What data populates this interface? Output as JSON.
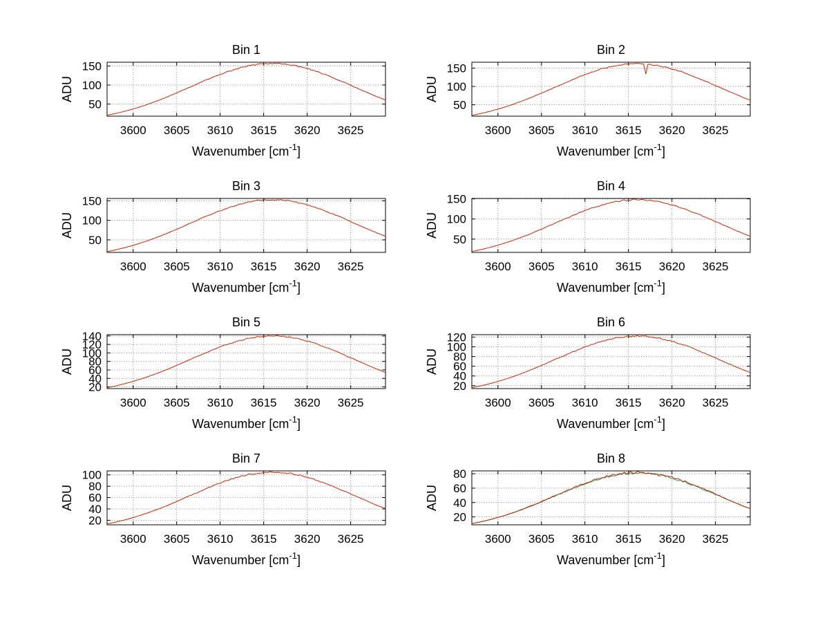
{
  "figure": {
    "background": "#ffffff"
  },
  "chart_data": {
    "type": "line",
    "grid": true,
    "legend": "none",
    "xlim": [
      3597,
      3629
    ],
    "x_start": 3597,
    "x_step": 1,
    "x_ticks": [
      3600,
      3605,
      3610,
      3615,
      3620,
      3625
    ],
    "xlabel": {
      "pre": "Wavenumber [cm",
      "sup": "-1",
      "post": "]"
    },
    "ylabel": "ADU",
    "grid_color": "#808080",
    "axis_color": "#000000",
    "plots": [
      {
        "title": "Bin 1",
        "ylim": [
          18,
          160
        ],
        "y_ticks": [
          50,
          100,
          150
        ],
        "series": [
          {
            "color": "#cc2200",
            "noise": 1.8,
            "values": [
              20.4,
              25.1,
              30.7,
              37.0,
              44.0,
              51.9,
              60.4,
              69.6,
              79.3,
              89.2,
              99.3,
              109.4,
              119.0,
              128.1,
              136.3,
              143.4,
              149.2,
              153.5,
              156.1,
              157.0,
              156.1,
              153.5,
              149.2,
              143.4,
              136.3,
              128.1,
              119.0,
              109.4,
              99.3,
              89.2,
              79.3,
              69.6,
              60.4
            ]
          }
        ]
      },
      {
        "title": "Bin 2",
        "ylim": [
          19,
          166
        ],
        "y_ticks": [
          50,
          100,
          150
        ],
        "series": [
          {
            "color": "#cc2200",
            "noise": 1.8,
            "dip": {
              "x": 3617,
              "y": 134
            },
            "values": [
              21.1,
              25.9,
              31.7,
              38.2,
              45.4,
              53.5,
              62.4,
              71.8,
              81.8,
              92.1,
              102.5,
              112.8,
              122.8,
              132.2,
              140.7,
              148.0,
              154.0,
              158.4,
              161.1,
              162.0,
              161.1,
              158.4,
              154.0,
              148.0,
              140.7,
              132.2,
              122.8,
              112.8,
              102.5,
              92.1,
              81.8,
              71.8,
              62.4
            ]
          }
        ]
      },
      {
        "title": "Bin 3",
        "ylim": [
          18,
          156
        ],
        "y_ticks": [
          50,
          100,
          150
        ],
        "series": [
          {
            "color": "#cc2200",
            "noise": 1.7,
            "values": [
              19.9,
              24.5,
              29.9,
              36.0,
              42.9,
              50.6,
              58.9,
              67.8,
              77.2,
              87.0,
              96.8,
              106.6,
              116.0,
              124.8,
              132.8,
              139.8,
              145.4,
              149.6,
              152.1,
              153.0,
              152.1,
              149.6,
              145.4,
              139.8,
              132.8,
              124.8,
              116.0,
              106.6,
              96.8,
              87.0,
              77.2,
              67.8,
              58.9
            ]
          }
        ]
      },
      {
        "title": "Bin 4",
        "ylim": [
          17,
          151
        ],
        "y_ticks": [
          50,
          100,
          150
        ],
        "series": [
          {
            "color": "#cc2200",
            "noise": 1.9,
            "values": [
              19.2,
              23.7,
              28.9,
              34.9,
              41.5,
              48.9,
              57.0,
              65.6,
              74.7,
              84.1,
              93.7,
              103.1,
              112.2,
              120.8,
              128.5,
              135.2,
              140.7,
              144.7,
              147.2,
              148.0,
              147.2,
              144.7,
              140.7,
              135.2,
              128.5,
              120.8,
              112.2,
              103.1,
              93.7,
              84.1,
              74.7,
              65.6,
              57.0
            ]
          }
        ]
      },
      {
        "title": "Bin 5",
        "ylim": [
          16,
          143
        ],
        "y_ticks": [
          20,
          40,
          60,
          80,
          100,
          120,
          140
        ],
        "series": [
          {
            "color": "#cc2200",
            "noise": 1.5,
            "values": [
              18.2,
              22.4,
              27.4,
              33.0,
              39.3,
              46.3,
              53.9,
              62.0,
              70.7,
              79.6,
              88.6,
              97.5,
              106.1,
              114.2,
              121.6,
              127.9,
              133.1,
              136.9,
              139.2,
              140.0,
              139.2,
              136.9,
              133.1,
              127.9,
              121.6,
              114.2,
              106.1,
              97.5,
              88.6,
              79.6,
              70.7,
              62.0,
              53.9
            ]
          }
        ]
      },
      {
        "title": "Bin 6",
        "ylim": [
          14,
          125
        ],
        "y_ticks": [
          20,
          40,
          60,
          80,
          100,
          120
        ],
        "series": [
          {
            "color": "#cc2200",
            "noise": 1.5,
            "values": [
              15.9,
              19.5,
              23.8,
              28.7,
              34.2,
              40.3,
              47.0,
              54.1,
              61.6,
              69.3,
              77.2,
              85.0,
              92.5,
              99.6,
              105.9,
              111.4,
              116.0,
              119.3,
              121.3,
              122.0,
              121.3,
              119.3,
              116.0,
              111.4,
              105.9,
              99.6,
              92.5,
              85.0,
              77.2,
              69.3,
              61.6,
              54.1,
              47.0
            ]
          }
        ]
      },
      {
        "title": "Bin 7",
        "ylim": [
          12,
          107
        ],
        "y_ticks": [
          20,
          40,
          60,
          80,
          100
        ],
        "series": [
          {
            "color": "#cc2200",
            "noise": 1.4,
            "values": [
              13.7,
              16.8,
              20.5,
              24.7,
              29.5,
              34.7,
              40.4,
              46.5,
              53.0,
              59.7,
              66.4,
              73.1,
              79.6,
              85.7,
              91.2,
              95.9,
              99.8,
              102.7,
              104.4,
              105.0,
              104.4,
              102.7,
              99.8,
              95.9,
              91.2,
              85.7,
              79.6,
              73.1,
              66.4,
              59.7,
              53.0,
              46.5,
              40.4
            ]
          }
        ]
      },
      {
        "title": "Bin 8",
        "ylim": [
          9,
          84
        ],
        "y_ticks": [
          20,
          40,
          60,
          80
        ],
        "series": [
          {
            "color": "#2ba05a",
            "noise": 1.6,
            "values": [
              10.5,
              13.0,
              15.8,
              19.1,
              22.7,
              26.8,
              31.2,
              35.9,
              40.9,
              46.0,
              51.3,
              56.4,
              61.4,
              66.1,
              70.3,
              74.0,
              77.0,
              79.2,
              80.5,
              81.0,
              80.5,
              79.2,
              77.0,
              74.0,
              70.3,
              66.1,
              61.4,
              56.4,
              51.3,
              46.0,
              40.9,
              35.9,
              31.2
            ]
          },
          {
            "color": "#cc2200",
            "noise": 1.6,
            "values": [
              10.7,
              13.1,
              16.0,
              19.3,
              23.0,
              27.1,
              31.6,
              36.3,
              41.4,
              46.6,
              51.9,
              57.1,
              62.2,
              66.9,
              71.2,
              74.9,
              78.0,
              80.2,
              81.5,
              82.0,
              81.5,
              80.2,
              78.0,
              74.9,
              71.2,
              66.9,
              62.2,
              57.1,
              51.9,
              46.6,
              41.4,
              36.3,
              31.6
            ]
          }
        ]
      }
    ]
  }
}
